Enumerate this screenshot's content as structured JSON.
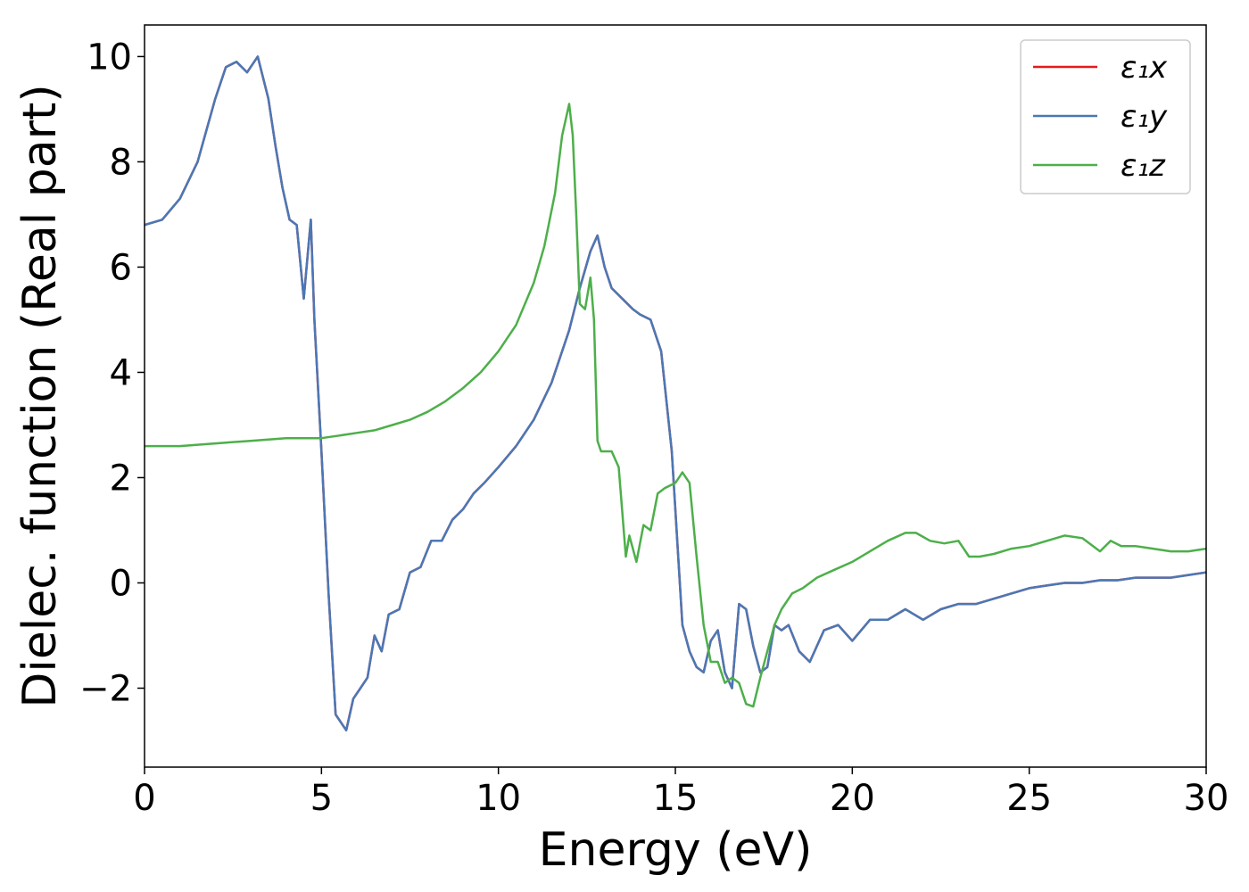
{
  "chart_data": {
    "type": "line",
    "title": "",
    "xlabel": "Energy (eV)",
    "ylabel": "Dielec. function (Real part)",
    "xlim": [
      0,
      30
    ],
    "ylim": [
      -3.5,
      10.6
    ],
    "x_ticks": [
      0,
      5,
      10,
      15,
      20,
      25,
      30
    ],
    "x_tick_labels": [
      "0",
      "5",
      "10",
      "15",
      "20",
      "25",
      "30"
    ],
    "y_ticks": [
      -2,
      0,
      2,
      4,
      6,
      8,
      10
    ],
    "y_tick_labels": [
      "−2",
      "0",
      "2",
      "4",
      "6",
      "8",
      "10"
    ],
    "grid": false,
    "legend_position": "top-right",
    "series": [
      {
        "name": "ε₁x",
        "color": "#e41a1c",
        "x": [
          0,
          0.5,
          1,
          1.5,
          2,
          2.3,
          2.6,
          2.9,
          3.2,
          3.5,
          3.7,
          3.9,
          4.1,
          4.3,
          4.5,
          4.7,
          4.8,
          5.0,
          5.2,
          5.4,
          5.6,
          5.7,
          5.9,
          6.1,
          6.3,
          6.5,
          6.7,
          6.9,
          7.2,
          7.5,
          7.8,
          8.1,
          8.4,
          8.7,
          9.0,
          9.3,
          9.6,
          10,
          10.5,
          11,
          11.5,
          12,
          12.3,
          12.6,
          12.8,
          13.0,
          13.2,
          13.5,
          13.8,
          14.0,
          14.3,
          14.6,
          14.9,
          15.2,
          15.4,
          15.6,
          15.8,
          16.0,
          16.2,
          16.4,
          16.6,
          16.8,
          17.0,
          17.2,
          17.4,
          17.6,
          17.8,
          18.0,
          18.2,
          18.5,
          18.8,
          19.2,
          19.6,
          20,
          20.5,
          21,
          21.5,
          22,
          22.5,
          23,
          23.5,
          24,
          24.5,
          25,
          25.5,
          26,
          26.5,
          27,
          27.5,
          28,
          28.5,
          29,
          29.5,
          30
        ],
        "y": [
          6.8,
          6.9,
          7.3,
          8.0,
          9.2,
          9.8,
          9.9,
          9.7,
          10.0,
          9.2,
          8.3,
          7.5,
          6.9,
          6.8,
          5.4,
          6.9,
          5.0,
          2.5,
          -0.2,
          -2.5,
          -2.7,
          -2.8,
          -2.2,
          -2.0,
          -1.8,
          -1.0,
          -1.3,
          -0.6,
          -0.5,
          0.2,
          0.3,
          0.8,
          0.8,
          1.2,
          1.4,
          1.7,
          1.9,
          2.2,
          2.6,
          3.1,
          3.8,
          4.8,
          5.6,
          6.3,
          6.6,
          6.0,
          5.6,
          5.4,
          5.2,
          5.1,
          5.0,
          4.4,
          2.5,
          -0.8,
          -1.3,
          -1.6,
          -1.7,
          -1.1,
          -0.9,
          -1.7,
          -2.0,
          -0.4,
          -0.5,
          -1.2,
          -1.7,
          -1.6,
          -0.8,
          -0.9,
          -0.8,
          -1.3,
          -1.5,
          -0.9,
          -0.8,
          -1.1,
          -0.7,
          -0.7,
          -0.5,
          -0.7,
          -0.5,
          -0.4,
          -0.4,
          -0.3,
          -0.2,
          -0.1,
          -0.05,
          0.0,
          0.0,
          0.05,
          0.05,
          0.1,
          0.1,
          0.1,
          0.15,
          0.2
        ]
      },
      {
        "name": "ε₁y",
        "color": "#4a78b5",
        "x": [
          0,
          0.5,
          1,
          1.5,
          2,
          2.3,
          2.6,
          2.9,
          3.2,
          3.5,
          3.7,
          3.9,
          4.1,
          4.3,
          4.5,
          4.7,
          4.8,
          5.0,
          5.2,
          5.4,
          5.6,
          5.7,
          5.9,
          6.1,
          6.3,
          6.5,
          6.7,
          6.9,
          7.2,
          7.5,
          7.8,
          8.1,
          8.4,
          8.7,
          9.0,
          9.3,
          9.6,
          10,
          10.5,
          11,
          11.5,
          12,
          12.3,
          12.6,
          12.8,
          13.0,
          13.2,
          13.5,
          13.8,
          14.0,
          14.3,
          14.6,
          14.9,
          15.2,
          15.4,
          15.6,
          15.8,
          16.0,
          16.2,
          16.4,
          16.6,
          16.8,
          17.0,
          17.2,
          17.4,
          17.6,
          17.8,
          18.0,
          18.2,
          18.5,
          18.8,
          19.2,
          19.6,
          20,
          20.5,
          21,
          21.5,
          22,
          22.5,
          23,
          23.5,
          24,
          24.5,
          25,
          25.5,
          26,
          26.5,
          27,
          27.5,
          28,
          28.5,
          29,
          29.5,
          30
        ],
        "y": [
          6.8,
          6.9,
          7.3,
          8.0,
          9.2,
          9.8,
          9.9,
          9.7,
          10.0,
          9.2,
          8.3,
          7.5,
          6.9,
          6.8,
          5.4,
          6.9,
          5.0,
          2.5,
          -0.2,
          -2.5,
          -2.7,
          -2.8,
          -2.2,
          -2.0,
          -1.8,
          -1.0,
          -1.3,
          -0.6,
          -0.5,
          0.2,
          0.3,
          0.8,
          0.8,
          1.2,
          1.4,
          1.7,
          1.9,
          2.2,
          2.6,
          3.1,
          3.8,
          4.8,
          5.6,
          6.3,
          6.6,
          6.0,
          5.6,
          5.4,
          5.2,
          5.1,
          5.0,
          4.4,
          2.5,
          -0.8,
          -1.3,
          -1.6,
          -1.7,
          -1.1,
          -0.9,
          -1.7,
          -2.0,
          -0.4,
          -0.5,
          -1.2,
          -1.7,
          -1.6,
          -0.8,
          -0.9,
          -0.8,
          -1.3,
          -1.5,
          -0.9,
          -0.8,
          -1.1,
          -0.7,
          -0.7,
          -0.5,
          -0.7,
          -0.5,
          -0.4,
          -0.4,
          -0.3,
          -0.2,
          -0.1,
          -0.05,
          0.0,
          0.0,
          0.05,
          0.05,
          0.1,
          0.1,
          0.1,
          0.15,
          0.2
        ]
      },
      {
        "name": "ε₁z",
        "color": "#4daf4a",
        "x": [
          0,
          1,
          2,
          3,
          4,
          4.5,
          5,
          5.5,
          6,
          6.5,
          7,
          7.5,
          8,
          8.5,
          9,
          9.5,
          10,
          10.5,
          11,
          11.3,
          11.6,
          11.8,
          12.0,
          12.1,
          12.2,
          12.3,
          12.45,
          12.6,
          12.7,
          12.8,
          12.9,
          13.0,
          13.2,
          13.4,
          13.6,
          13.7,
          13.9,
          14.1,
          14.3,
          14.5,
          14.7,
          15.0,
          15.2,
          15.4,
          15.6,
          15.8,
          16.0,
          16.2,
          16.4,
          16.6,
          16.8,
          17.0,
          17.2,
          17.4,
          17.6,
          17.8,
          18.0,
          18.3,
          18.6,
          19,
          19.5,
          20,
          20.5,
          21,
          21.5,
          21.8,
          22.2,
          22.6,
          23.0,
          23.3,
          23.6,
          24.0,
          24.5,
          25,
          25.5,
          26,
          26.5,
          27,
          27.3,
          27.6,
          28,
          28.5,
          29,
          29.5,
          30
        ],
        "y": [
          2.6,
          2.6,
          2.65,
          2.7,
          2.75,
          2.75,
          2.75,
          2.8,
          2.85,
          2.9,
          3.0,
          3.1,
          3.25,
          3.45,
          3.7,
          4.0,
          4.4,
          4.9,
          5.7,
          6.4,
          7.4,
          8.5,
          9.1,
          8.5,
          7.0,
          5.3,
          5.2,
          5.8,
          5.0,
          2.7,
          2.5,
          2.5,
          2.5,
          2.2,
          0.5,
          0.9,
          0.4,
          1.1,
          1.0,
          1.7,
          1.8,
          1.9,
          2.1,
          1.9,
          0.5,
          -0.8,
          -1.5,
          -1.5,
          -1.9,
          -1.8,
          -1.9,
          -2.3,
          -2.35,
          -1.8,
          -1.3,
          -0.8,
          -0.5,
          -0.2,
          -0.1,
          0.1,
          0.25,
          0.4,
          0.6,
          0.8,
          0.95,
          0.95,
          0.8,
          0.75,
          0.8,
          0.5,
          0.5,
          0.55,
          0.65,
          0.7,
          0.8,
          0.9,
          0.85,
          0.6,
          0.8,
          0.7,
          0.7,
          0.65,
          0.6,
          0.6,
          0.65
        ]
      }
    ]
  }
}
